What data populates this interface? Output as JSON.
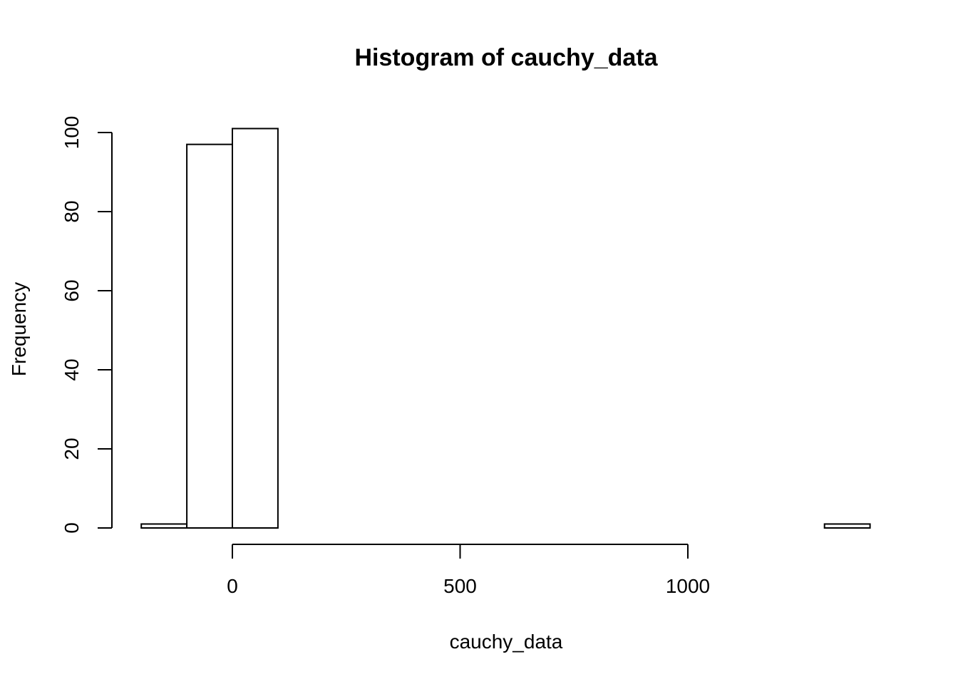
{
  "chart_data": {
    "type": "bar",
    "title": "Histogram of cauchy_data",
    "xlabel": "cauchy_data",
    "ylabel": "Frequency",
    "bin_edges": [
      -200,
      -100,
      0,
      100,
      200,
      300,
      400,
      500,
      600,
      700,
      800,
      900,
      1000,
      1100,
      1200,
      1300,
      1400
    ],
    "values": [
      1,
      97,
      101,
      0,
      0,
      0,
      0,
      0,
      0,
      0,
      0,
      0,
      0,
      0,
      0,
      1
    ],
    "x_ticks": [
      0,
      500,
      1000
    ],
    "x_tick_labels": [
      "0",
      "500",
      "1000"
    ],
    "y_ticks": [
      0,
      20,
      40,
      60,
      80,
      100
    ],
    "y_tick_labels": [
      "0",
      "20",
      "40",
      "60",
      "80",
      "100"
    ],
    "grid": false,
    "bar_fill": "#ffffff",
    "bar_stroke": "#000000"
  }
}
